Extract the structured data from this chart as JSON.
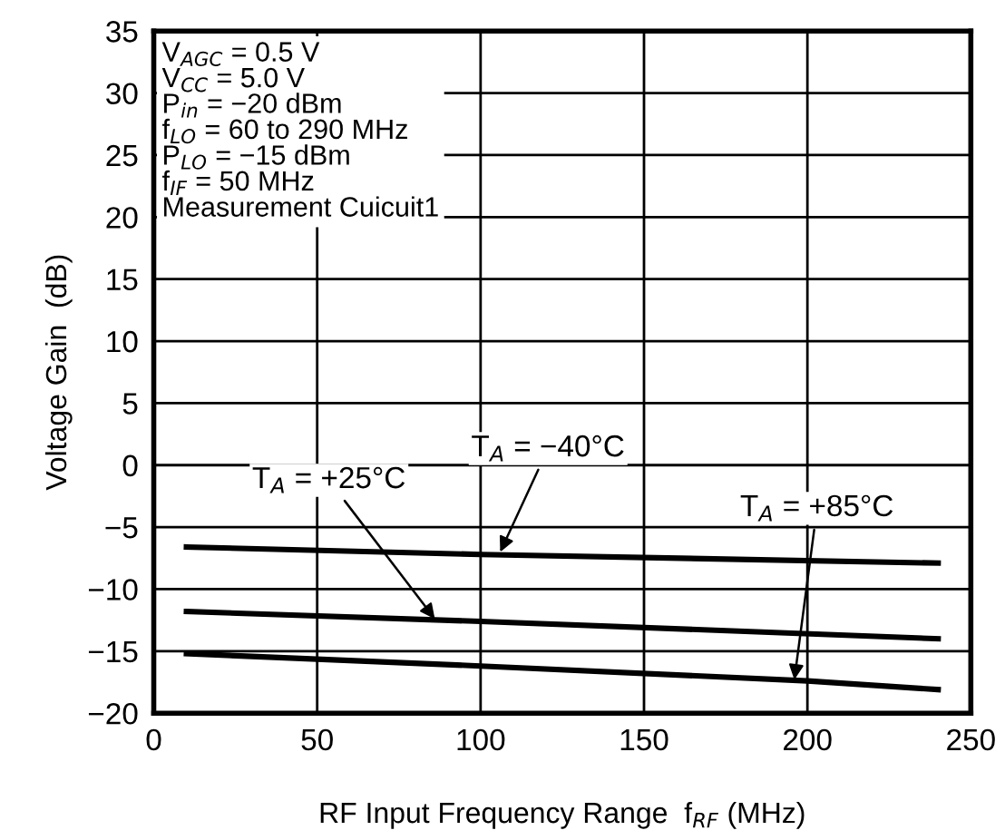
{
  "chart_data": {
    "type": "line",
    "xlabel": "RF Input Frequency Range  f$_{RF}$ (MHz)",
    "ylabel": "Voltage Gain  (dB)",
    "series": [
      {
        "color": "#000000",
        "x": [
          10,
          100,
          240
        ],
        "values": [
          -6.6,
          -7.2,
          -7.9
        ]
      },
      {
        "color": "#000000",
        "x": [
          10,
          100,
          240
        ],
        "values": [
          -11.8,
          -12.6,
          -14.0
        ]
      },
      {
        "color": "#000000",
        "x": [
          10,
          100,
          200,
          240
        ],
        "values": [
          -15.2,
          -16.2,
          -17.4,
          -18.1
        ]
      }
    ],
    "annotations": [
      "V$_{AGC}$ = 0.5 V\nV$_{CC}$ = 5.0 V\nP$_{in}$ = −20 dBm\nf$_{LO}$ = 60 to 290 MHz\nP$_{LO}$ = −15 dBm\nf$_{IF}$ = 50 MHz\nMeasurement Cuicuit1",
      {
        "text": "T$_{A}$ = −40°C",
        "x": 106,
        "y": -7.0
      },
      {
        "text": "T$_{A}$ = +25°C",
        "x": 86,
        "y": -12.4
      },
      {
        "text": "T$_{A}$ = +85°C",
        "x": 196,
        "y": -17.3
      }
    ],
    "xlim": [
      0,
      250
    ],
    "xticks": [
      0,
      50,
      100,
      150,
      200,
      250
    ],
    "ylim": [
      -20,
      35
    ],
    "yticks": [
      {
        "value": -20,
        "label": "−20"
      },
      {
        "value": -15,
        "label": "−15"
      },
      {
        "value": -10,
        "label": "−10"
      },
      {
        "value": -5,
        "label": "−5"
      },
      0,
      5,
      10,
      15,
      20,
      25,
      30,
      35
    ],
    "grid": true,
    "marker": "none",
    "line_style": "solid"
  }
}
